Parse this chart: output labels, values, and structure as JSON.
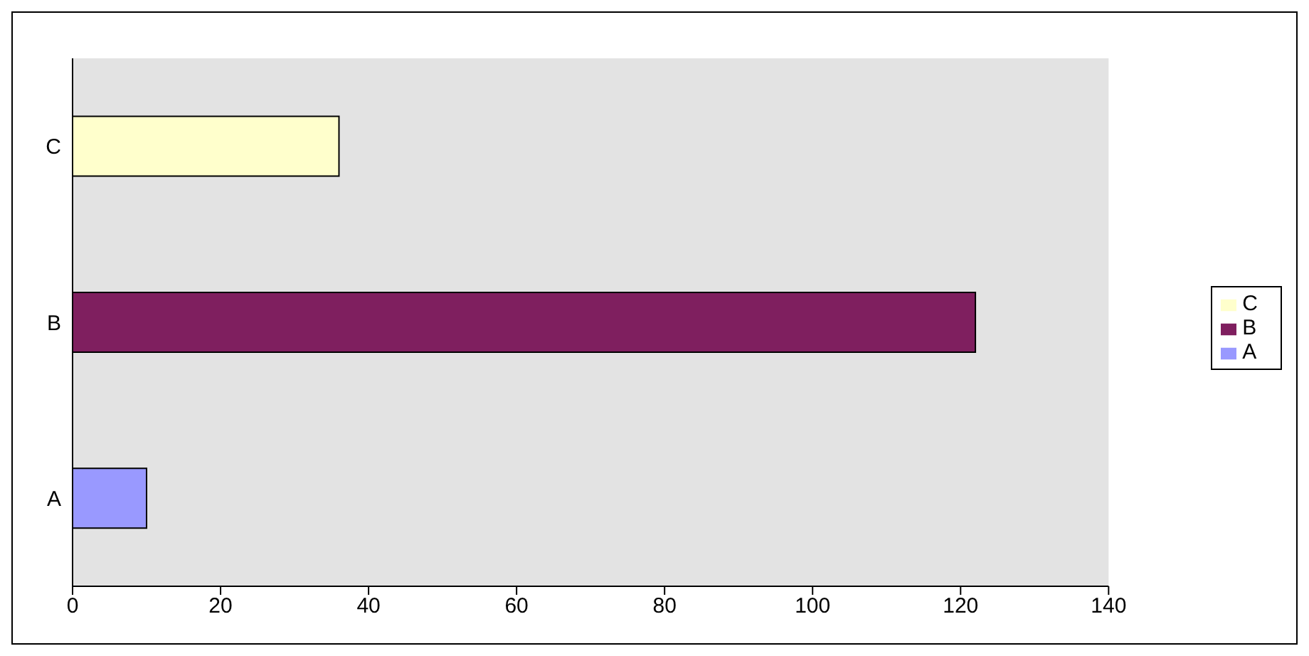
{
  "chart_data": {
    "type": "bar",
    "orientation": "horizontal",
    "stacked": true,
    "categories": [
      "C",
      "B",
      "A"
    ],
    "series": [
      {
        "name": "C",
        "color": "#ffffcc",
        "values": [
          36,
          null,
          null
        ]
      },
      {
        "name": "B",
        "color": "#7f1f5f",
        "values": [
          null,
          122,
          null
        ]
      },
      {
        "name": "A",
        "color": "#9999ff",
        "values": [
          null,
          null,
          10
        ]
      }
    ],
    "xlim": [
      0,
      140
    ],
    "xticks": [
      0,
      20,
      40,
      60,
      80,
      100,
      120,
      140
    ],
    "grid": false,
    "legend": "right"
  }
}
